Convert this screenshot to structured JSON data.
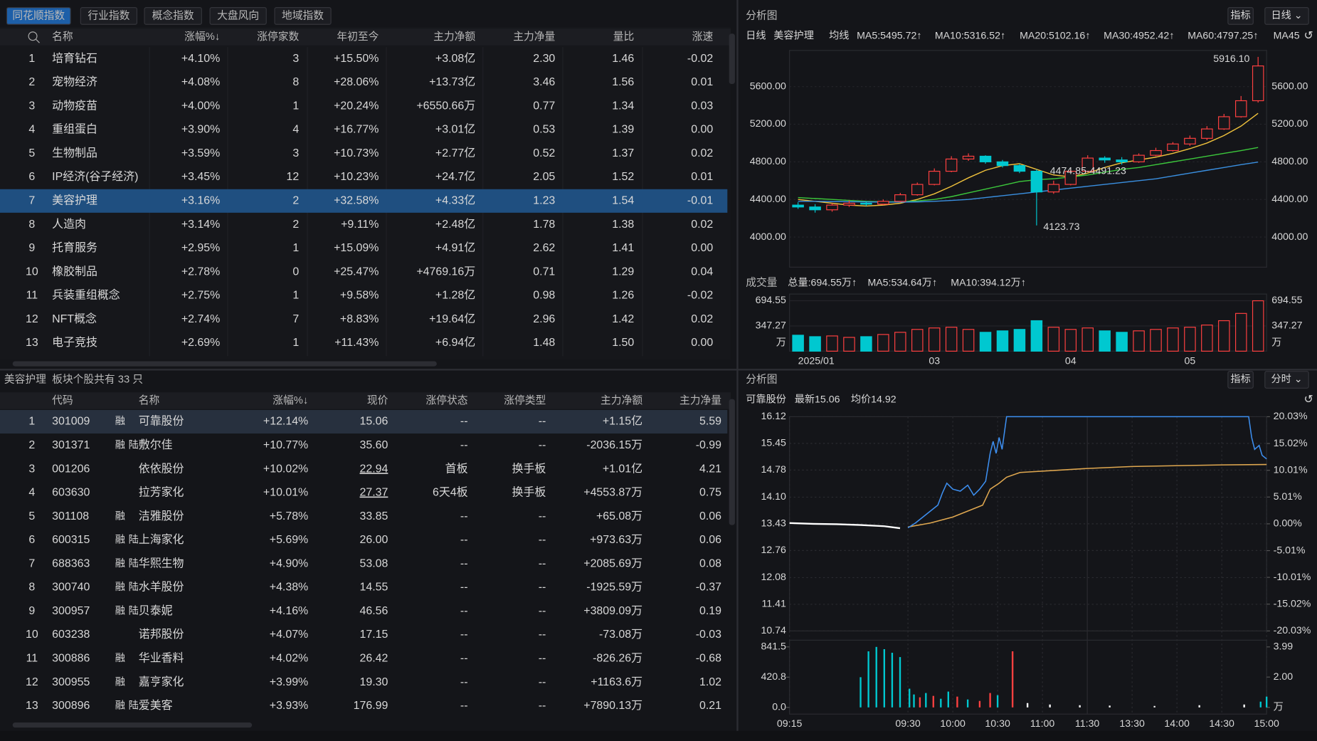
{
  "tabs": [
    "同花顺指数",
    "行业指数",
    "概念指数",
    "大盘风向",
    "地域指数"
  ],
  "top_table": {
    "headers": [
      "名称",
      "涨幅%↓",
      "涨停家数",
      "年初至今",
      "主力净额",
      "主力净量",
      "量比",
      "涨速"
    ],
    "rows": [
      [
        "1",
        "培育钻石",
        "+4.10%",
        "3",
        "+15.50%",
        "+3.08亿",
        "2.30",
        "1.46",
        "-0.02"
      ],
      [
        "2",
        "宠物经济",
        "+4.08%",
        "8",
        "+28.06%",
        "+13.73亿",
        "3.46",
        "1.56",
        "0.01"
      ],
      [
        "3",
        "动物疫苗",
        "+4.00%",
        "1",
        "+20.24%",
        "+6550.66万",
        "0.77",
        "1.34",
        "0.03"
      ],
      [
        "4",
        "重组蛋白",
        "+3.90%",
        "4",
        "+16.77%",
        "+3.01亿",
        "0.53",
        "1.39",
        "0.00"
      ],
      [
        "5",
        "生物制品",
        "+3.59%",
        "3",
        "+10.73%",
        "+2.77亿",
        "0.52",
        "1.37",
        "0.02"
      ],
      [
        "6",
        "IP经济(谷子经济)",
        "+3.45%",
        "12",
        "+10.23%",
        "+24.7亿",
        "2.05",
        "1.52",
        "0.01"
      ],
      [
        "7",
        "美容护理",
        "+3.16%",
        "2",
        "+32.58%",
        "+4.33亿",
        "1.23",
        "1.54",
        "-0.01"
      ],
      [
        "8",
        "人造肉",
        "+3.14%",
        "2",
        "+9.11%",
        "+2.48亿",
        "1.78",
        "1.38",
        "0.02"
      ],
      [
        "9",
        "托育服务",
        "+2.95%",
        "1",
        "+15.09%",
        "+4.91亿",
        "2.62",
        "1.41",
        "0.00"
      ],
      [
        "10",
        "橡胶制品",
        "+2.78%",
        "0",
        "+25.47%",
        "+4769.16万",
        "0.71",
        "1.29",
        "0.04"
      ],
      [
        "11",
        "兵装重组概念",
        "+2.75%",
        "1",
        "+9.58%",
        "+1.28亿",
        "0.98",
        "1.26",
        "-0.02"
      ],
      [
        "12",
        "NFT概念",
        "+2.74%",
        "7",
        "+8.83%",
        "+19.64亿",
        "2.96",
        "1.42",
        "0.02"
      ],
      [
        "13",
        "电子竞技",
        "+2.69%",
        "1",
        "+11.43%",
        "+6.94亿",
        "1.48",
        "1.50",
        "0.00"
      ]
    ]
  },
  "stock_table": {
    "title": [
      "美容护理",
      "板块个股共有 33 只"
    ],
    "headers": [
      "代码",
      "名称",
      "涨幅%↓",
      "现价",
      "涨停状态",
      "涨停类型",
      "主力净额",
      "主力净量"
    ],
    "rows": [
      [
        "1",
        "301009",
        [
          "融"
        ],
        "可靠股份",
        "+12.14%",
        "15.06",
        "--",
        "--",
        "+1.15亿",
        "5.59"
      ],
      [
        "2",
        "301371",
        [
          "融",
          "陆"
        ],
        "敷尔佳",
        "+10.77%",
        "35.60",
        "--",
        "--",
        "-2036.15万",
        "-0.99"
      ],
      [
        "3",
        "001206",
        [],
        "依依股份",
        "+10.02%",
        "22.94",
        "首板",
        "换手板",
        "+1.01亿",
        "4.21"
      ],
      [
        "4",
        "603630",
        [],
        "拉芳家化",
        "+10.01%",
        "27.37",
        "6天4板",
        "换手板",
        "+4553.87万",
        "0.75"
      ],
      [
        "5",
        "301108",
        [
          "融"
        ],
        "洁雅股份",
        "+5.78%",
        "33.85",
        "--",
        "--",
        "+65.08万",
        "0.06"
      ],
      [
        "6",
        "600315",
        [
          "融",
          "陆"
        ],
        "上海家化",
        "+5.69%",
        "26.00",
        "--",
        "--",
        "+973.63万",
        "0.06"
      ],
      [
        "7",
        "688363",
        [
          "融",
          "陆"
        ],
        "华熙生物",
        "+4.90%",
        "53.08",
        "--",
        "--",
        "+2085.69万",
        "0.08"
      ],
      [
        "8",
        "300740",
        [
          "融",
          "陆"
        ],
        "水羊股份",
        "+4.38%",
        "14.55",
        "--",
        "--",
        "-1925.59万",
        "-0.37"
      ],
      [
        "9",
        "300957",
        [
          "融",
          "陆"
        ],
        "贝泰妮",
        "+4.16%",
        "46.56",
        "--",
        "--",
        "+3809.09万",
        "0.19"
      ],
      [
        "10",
        "603238",
        [],
        "诺邦股份",
        "+4.07%",
        "17.15",
        "--",
        "--",
        "-73.08万",
        "-0.03"
      ],
      [
        "11",
        "300886",
        [
          "融"
        ],
        "华业香料",
        "+4.02%",
        "26.42",
        "--",
        "--",
        "-826.26万",
        "-0.68"
      ],
      [
        "12",
        "300955",
        [
          "融"
        ],
        "嘉亨家化",
        "+3.99%",
        "19.30",
        "--",
        "--",
        "+1163.6万",
        "1.02"
      ],
      [
        "13",
        "300896",
        [
          "融",
          "陆"
        ],
        "爱美客",
        "+3.93%",
        "176.99",
        "--",
        "--",
        "+7890.13万",
        "0.21"
      ]
    ]
  },
  "kline": {
    "type": "candlestick",
    "panel_title": "分析图",
    "buttons": [
      "指标",
      "日线 ⌄"
    ],
    "legend": [
      {
        "text": "日线",
        "color": "#f0c23c"
      },
      {
        "text": "美容护理",
        "color": "#f0c23c"
      },
      {
        "text": "均线",
        "color": "#d8d8d8"
      }
    ],
    "ma_labels": [
      {
        "text": "MA5:5495.72↑",
        "color": "#e8e8e8"
      },
      {
        "text": "MA10:5316.52↑",
        "color": "#f0c23c"
      },
      {
        "text": "MA20:5102.16↑",
        "color": "#e040e0"
      },
      {
        "text": "MA30:4952.42↑",
        "color": "#3cc83c"
      },
      {
        "text": "MA60:4797.25↑",
        "color": "#3a8fe0"
      },
      {
        "text": "MA45",
        "color": "#e8e8e8"
      }
    ],
    "categories": [
      "2025/01",
      null,
      null,
      null,
      null,
      null,
      null,
      null,
      "03",
      null,
      null,
      null,
      null,
      null,
      null,
      null,
      "04",
      null,
      null,
      null,
      null,
      null,
      null,
      "05",
      null,
      null,
      null,
      null
    ],
    "open": [
      4340,
      4320,
      4290,
      4340,
      4360,
      4350,
      4380,
      4450,
      4560,
      4700,
      4830,
      4860,
      4800,
      4760,
      4700,
      4480,
      4560,
      4700,
      4840,
      4820,
      4800,
      4870,
      4920,
      4990,
      5050,
      5150,
      5280,
      5450
    ],
    "close": [
      4320,
      4290,
      4340,
      4360,
      4350,
      4380,
      4450,
      4560,
      4700,
      4830,
      4860,
      4800,
      4760,
      4700,
      4480,
      4560,
      4700,
      4840,
      4820,
      4800,
      4870,
      4920,
      4990,
      5050,
      5150,
      5280,
      5450,
      5820
    ],
    "high": [
      4370,
      4350,
      4360,
      4390,
      4380,
      4400,
      4470,
      4580,
      4730,
      4860,
      4890,
      4870,
      4820,
      4780,
      4720,
      4600,
      4720,
      4870,
      4860,
      4850,
      4890,
      4950,
      5010,
      5080,
      5180,
      5310,
      5500,
      5916.1
    ],
    "low": [
      4300,
      4260,
      4270,
      4320,
      4330,
      4340,
      4370,
      4440,
      4550,
      4690,
      4810,
      4780,
      4740,
      4680,
      4123.73,
      4460,
      4550,
      4690,
      4790,
      4770,
      4790,
      4860,
      4910,
      4970,
      5030,
      5140,
      5270,
      5430
    ],
    "up_color": "#ff4040",
    "down_color": "#00c8d0",
    "ma": [
      {
        "name": "MA10",
        "color": "#f0c23c",
        "values": [
          4400,
          4380,
          4360,
          4340,
          4330,
          4340,
          4360,
          4400,
          4460,
          4540,
          4630,
          4710,
          4760,
          4780,
          4720,
          4660,
          4640,
          4680,
          4740,
          4790,
          4820,
          4850,
          4890,
          4940,
          5000,
          5080,
          5180,
          5316.52
        ]
      },
      {
        "name": "MA30",
        "color": "#3cc83c",
        "values": [
          4420,
          4410,
          4400,
          4390,
          4380,
          4375,
          4375,
          4385,
          4400,
          4430,
          4470,
          4510,
          4550,
          4590,
          4610,
          4620,
          4640,
          4660,
          4690,
          4720,
          4740,
          4770,
          4800,
          4830,
          4860,
          4890,
          4920,
          4952.42
        ]
      },
      {
        "name": "MA60",
        "color": "#3a8fe0",
        "values": [
          4380,
          4380,
          4378,
          4376,
          4374,
          4372,
          4372,
          4374,
          4380,
          4390,
          4400,
          4420,
          4440,
          4460,
          4480,
          4500,
          4520,
          4540,
          4560,
          4580,
          4600,
          4620,
          4650,
          4680,
          4710,
          4740,
          4770,
          4797.25
        ]
      }
    ],
    "annotations": [
      "5916.10",
      "4474.85-4491.23",
      "4123.73"
    ],
    "ylim": [
      3680,
      5985
    ],
    "yticks": [
      {
        "value": 5600,
        "label": "5600.00"
      },
      {
        "value": 5200,
        "label": "5200.00"
      },
      {
        "value": 4800,
        "label": "4800.00"
      },
      {
        "value": 4400,
        "label": "4400.00"
      },
      {
        "value": 4000,
        "label": "4000.00"
      }
    ],
    "volume": {
      "label": "成交量",
      "stats": [
        {
          "text": "总量:694.55万↑",
          "color": "#ff4040"
        },
        {
          "text": "MA5:534.64万↑",
          "color": "#f0c23c"
        },
        {
          "text": "MA10:394.12万↑",
          "color": "#e8e8e8"
        }
      ],
      "values": [
        220,
        200,
        210,
        190,
        200,
        230,
        260,
        300,
        320,
        330,
        300,
        260,
        280,
        300,
        420,
        330,
        300,
        320,
        280,
        260,
        280,
        300,
        320,
        330,
        360,
        420,
        520,
        694.55
      ],
      "ylim": [
        0,
        787
      ],
      "yticks": [
        694.55,
        347.27,
        {
          "value": 0,
          "label": "万"
        }
      ]
    }
  },
  "intraday": {
    "type": "line",
    "panel_title": "分析图",
    "buttons": [
      "指标",
      "分时 ⌄"
    ],
    "stock": "可靠股份",
    "latest": "最新15.06",
    "avg_label": "均价14.92",
    "ylim": [
      10.74,
      16.12
    ],
    "yticks": [
      16.12,
      15.45,
      14.78,
      {
        "value": 14.1,
        "label": "14.10"
      },
      13.43,
      12.76,
      12.08,
      11.41,
      10.74
    ],
    "y2lim": [
      -20.03,
      20.03
    ],
    "y2ticks": [
      {
        "value": 20.03,
        "label": "20.03%"
      },
      {
        "value": 15.02,
        "label": "15.02%"
      },
      {
        "value": 10.01,
        "label": "10.01%"
      },
      {
        "value": 5.01,
        "label": "5.01%"
      },
      {
        "value": 0,
        "label": "0.00%"
      },
      {
        "value": -5.01,
        "label": "-5.01%"
      },
      {
        "value": -10.01,
        "label": "-10.01%"
      },
      {
        "value": -15.02,
        "label": "-15.02%"
      },
      {
        "value": -20.03,
        "label": "-20.03%"
      }
    ],
    "xticks": [
      "09:15",
      "09:30",
      "10:00",
      "10:30",
      "11:00",
      "11:30",
      "13:30",
      "14:00",
      "14:30",
      "15:00"
    ],
    "auction": {
      "color": "#ffffff",
      "x": [
        "09:15",
        "09:18",
        "09:21",
        "09:24",
        "09:27",
        "09:29"
      ],
      "values": [
        13.45,
        13.43,
        13.42,
        13.4,
        13.37,
        13.32
      ]
    },
    "price": {
      "color": "#3d8ff0",
      "x": [
        "09:30",
        "09:35",
        "09:40",
        "09:45",
        "09:50",
        "09:53",
        "09:56",
        "10:00",
        "10:05",
        "10:10",
        "10:14",
        "10:18",
        "10:22",
        "10:25",
        "10:27",
        "10:29",
        "10:31",
        "10:33",
        "10:36",
        "14:48",
        "14:50",
        "14:52",
        "14:55",
        "14:57",
        "15:00"
      ],
      "values": [
        13.33,
        13.45,
        13.6,
        13.75,
        13.9,
        14.2,
        14.45,
        14.3,
        14.25,
        14.4,
        14.15,
        14.3,
        14.5,
        15.2,
        15.5,
        15.2,
        15.6,
        15.3,
        16.12,
        16.12,
        15.6,
        15.3,
        15.4,
        15.15,
        15.06
      ]
    },
    "avg": {
      "color": "#e0a850",
      "x": [
        "09:30",
        "09:45",
        "10:00",
        "10:20",
        "10:25",
        "10:31",
        "10:36",
        "10:45",
        "11:30",
        "13:30",
        "14:30",
        "15:00"
      ],
      "values": [
        13.35,
        13.45,
        13.6,
        13.9,
        14.3,
        14.45,
        14.6,
        14.72,
        14.82,
        14.87,
        14.91,
        14.92
      ]
    },
    "volume": {
      "x": [
        "09:24",
        "09:25",
        "09:26",
        "09:27",
        "09:28",
        "09:29",
        "09:31",
        "09:34",
        "09:38",
        "09:42",
        "09:47",
        "09:52",
        "09:57",
        "10:03",
        "10:10",
        "10:18",
        "10:25",
        "10:30",
        "10:40",
        "10:50",
        "11:05",
        "11:25",
        "13:15",
        "13:45",
        "14:15",
        "14:45",
        "14:56",
        "15:00"
      ],
      "values": [
        420,
        780,
        841.5,
        810,
        760,
        700,
        260,
        180,
        140,
        200,
        160,
        120,
        220,
        150,
        110,
        90,
        200,
        170,
        780,
        60,
        40,
        30,
        25,
        20,
        30,
        40,
        80,
        150
      ],
      "colors": [
        "#00c8d0",
        "#00c8d0",
        "#00c8d0",
        "#00c8d0",
        "#00c8d0",
        "#00c8d0",
        "#00c8d0",
        "#00c8d0",
        "#ff4040",
        "#00c8d0",
        "#ff4040",
        "#00c8d0",
        "#00c8d0",
        "#ff4040",
        "#00c8d0",
        "#ff4040",
        "#ff4040",
        "#00c8d0",
        "#ff4040",
        "#ffffff",
        "#ffffff",
        "#ffffff",
        "#ffffff",
        "#ffffff",
        "#ffffff",
        "#ffffff",
        "#00c8d0",
        "#00c8d0"
      ],
      "ylim": [
        0,
        841.5
      ],
      "yticks": [
        841.5,
        420.8,
        {
          "value": 0,
          "label": "0.0"
        }
      ],
      "y2lim": [
        0,
        3.99
      ],
      "y2ticks": [
        3.99,
        {
          "value": 2,
          "label": "2.00"
        },
        {
          "value": 0,
          "label": "万"
        }
      ]
    }
  }
}
